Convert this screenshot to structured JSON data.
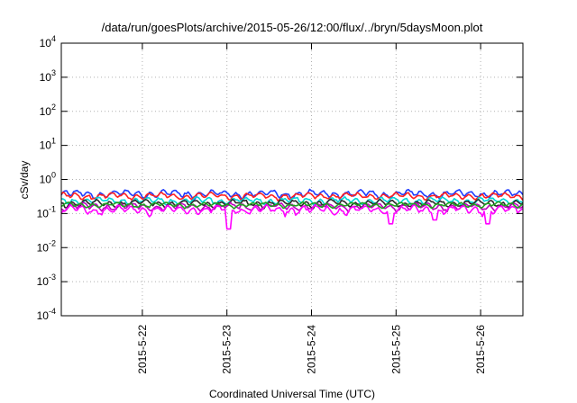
{
  "chart_data": {
    "type": "line",
    "title": "/data/run/goesPlots/archive/2015-05-26/12:00/flux/../bryn/5daysMoon.plot",
    "xlabel": "Coordinated Universal Time (UTC)",
    "ylabel": "cSv/day",
    "yscale": "log",
    "ylim": [
      0.0001,
      10000
    ],
    "y_ticks": [
      {
        "base": "10",
        "exp": "-4"
      },
      {
        "base": "10",
        "exp": "-3"
      },
      {
        "base": "10",
        "exp": "-2"
      },
      {
        "base": "10",
        "exp": "-1"
      },
      {
        "base": "10",
        "exp": "0"
      },
      {
        "base": "10",
        "exp": "1"
      },
      {
        "base": "10",
        "exp": "2"
      },
      {
        "base": "10",
        "exp": "3"
      },
      {
        "base": "10",
        "exp": "4"
      }
    ],
    "xlim": [
      "2015-05-21 01:00",
      "2015-05-26 12:00"
    ],
    "x_ticks": [
      "2015-5-22",
      "2015-5-23",
      "2015-5-24",
      "2015-5-25",
      "2015-5-26"
    ],
    "x_tick_dates": [
      "2015-05-22 00:00",
      "2015-05-23 00:00",
      "2015-05-24 00:00",
      "2015-05-25 00:00",
      "2015-05-26 00:00"
    ],
    "grid": true,
    "series": [
      {
        "color": "#1f3cff",
        "base": 0.38,
        "amp": 0.13,
        "phase": 0.0
      },
      {
        "color": "#ff2020",
        "base": 0.33,
        "amp": 0.09,
        "phase": 0.7
      },
      {
        "color": "#00d5d5",
        "base": 0.24,
        "amp": 0.07,
        "phase": 1.5
      },
      {
        "color": "#2a2a2a",
        "base": 0.2,
        "amp": 0.06,
        "phase": 2.1
      },
      {
        "color": "#c000c0",
        "base": 0.16,
        "amp": 0.05,
        "phase": 2.9
      },
      {
        "color": "#ff00ff",
        "base": 0.13,
        "amp": 0.05,
        "phase": 3.6,
        "dips": [
          {
            "date": "2015-05-23 00:30",
            "value": 0.035
          },
          {
            "date": "2015-05-24 22:30",
            "value": 0.05
          },
          {
            "date": "2015-05-25 11:00",
            "value": 0.065
          },
          {
            "date": "2015-05-26 02:00",
            "value": 0.05
          }
        ]
      },
      {
        "color": "#20a020",
        "base": 0.18,
        "amp": 0.04,
        "phase": 4.2
      }
    ]
  }
}
